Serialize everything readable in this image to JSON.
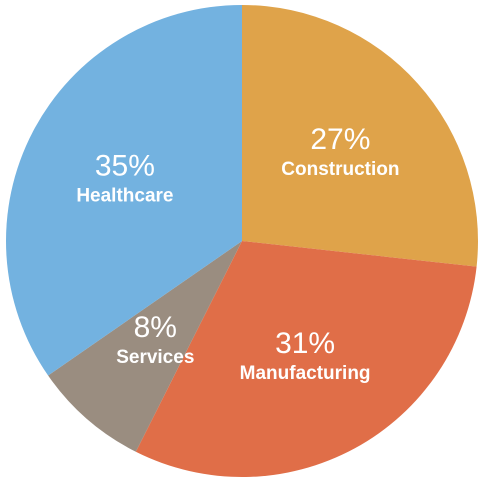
{
  "chart_data": {
    "type": "pie",
    "title": "",
    "start_angle_deg": 0,
    "direction": "clockwise",
    "slices": [
      {
        "label": "Construction",
        "value": 27,
        "value_label": "27%",
        "color": "#DFA34A"
      },
      {
        "label": "Manufacturing",
        "value": 31,
        "value_label": "31%",
        "color": "#E06E48"
      },
      {
        "label": "Services",
        "value": 8,
        "value_label": "8%",
        "color": "#9A8D80"
      },
      {
        "label": "Healthcare",
        "value": 35,
        "value_label": "35%",
        "color": "#73B2E0"
      }
    ]
  }
}
